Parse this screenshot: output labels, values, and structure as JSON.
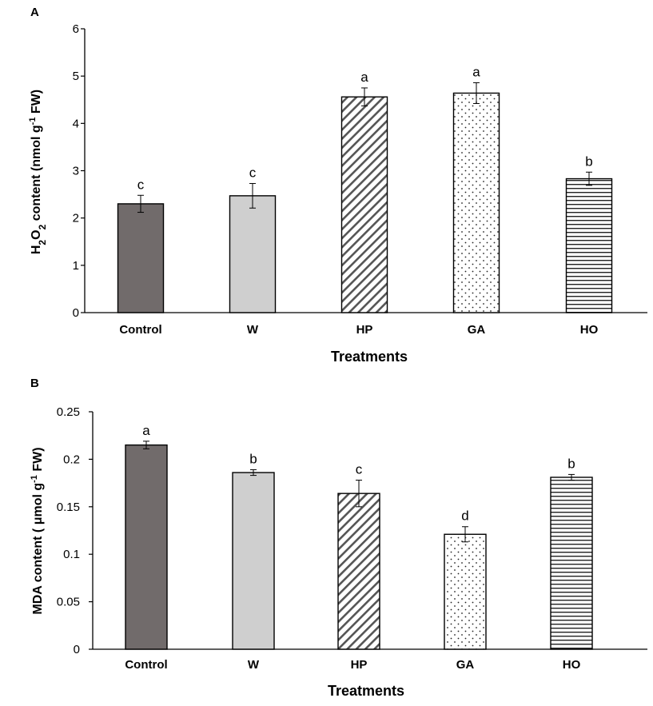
{
  "chart_data": [
    {
      "panel": "A",
      "type": "bar",
      "categories": [
        "Control",
        "W",
        "HP",
        "GA",
        "HO"
      ],
      "values": [
        2.3,
        2.47,
        4.56,
        4.64,
        2.83
      ],
      "errors": [
        0.18,
        0.26,
        0.19,
        0.22,
        0.14
      ],
      "letters": [
        "c",
        "c",
        "a",
        "a",
        "b"
      ],
      "patterns": [
        "solid-dark",
        "solid-light",
        "diagonal",
        "dots",
        "horizontal"
      ],
      "xlabel": "Treatments",
      "ylabel_parts": [
        "H",
        "2",
        "O",
        "2",
        " content (nmol g",
        "-1",
        " FW)"
      ],
      "ylim": [
        0,
        6
      ],
      "yticks": [
        "0",
        "1",
        "2",
        "3",
        "4",
        "5",
        "6"
      ],
      "grid": false,
      "legend": "none"
    },
    {
      "panel": "B",
      "type": "bar",
      "categories": [
        "Control",
        "W",
        "HP",
        "GA",
        "HO"
      ],
      "values": [
        0.215,
        0.186,
        0.164,
        0.121,
        0.181
      ],
      "errors": [
        0.004,
        0.003,
        0.014,
        0.008,
        0.003
      ],
      "letters": [
        "a",
        "b",
        "c",
        "d",
        "b"
      ],
      "patterns": [
        "solid-dark",
        "solid-light",
        "diagonal",
        "dots",
        "horizontal"
      ],
      "xlabel": "Treatments",
      "ylabel_parts": [
        "MDA content ( μmol g",
        "-1",
        " FW)"
      ],
      "ylim": [
        0,
        0.25
      ],
      "yticks": [
        "0",
        "0.05",
        "0.1",
        "0.15",
        "0.2",
        "0.25"
      ],
      "grid": false,
      "legend": "none"
    }
  ],
  "colors": {
    "dark_fill": "#716b6b",
    "light_fill": "#cfcfcf",
    "stroke": "#000000"
  }
}
